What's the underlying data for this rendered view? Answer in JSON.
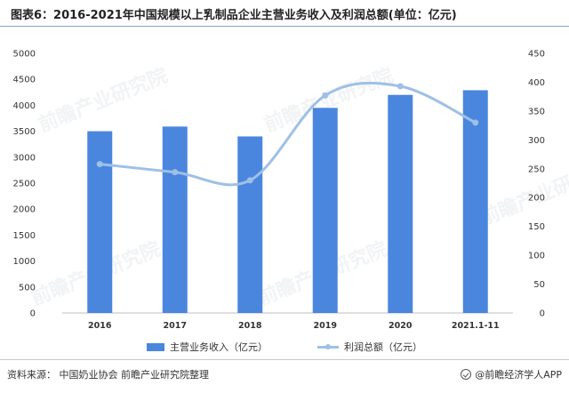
{
  "title": "图表6：2016-2021年中国规模以上乳制品企业主营业务收入及利润总额(单位：亿元)",
  "source": "资料来源：  中国奶业协会 前瞻产业研究院整理",
  "brand": "@前瞻经济学人APP",
  "watermark": "前瞻产业研究院",
  "colors": {
    "bar": "#4a86dd",
    "line": "#9ec0e6"
  },
  "legend": {
    "bar_label": "主营业务收入（亿元）",
    "line_label": "利润总额（亿元）"
  },
  "chart_data": {
    "type": "bar",
    "categories": [
      "2016",
      "2017",
      "2018",
      "2019",
      "2020",
      "2021.1-11"
    ],
    "series": [
      {
        "name": "主营业务收入（亿元）",
        "type": "bar",
        "axis": "left",
        "values": [
          3500,
          3590,
          3400,
          3950,
          4200,
          4290
        ]
      },
      {
        "name": "利润总额（亿元）",
        "type": "line",
        "axis": "right",
        "values": [
          258,
          244,
          230,
          377,
          393,
          330
        ]
      }
    ],
    "ylim": [
      0,
      5000
    ],
    "yticks": [
      0,
      500,
      1000,
      1500,
      2000,
      2500,
      3000,
      3500,
      4000,
      4500,
      5000
    ],
    "y2lim": [
      0,
      450
    ],
    "y2ticks": [
      0,
      50,
      100,
      150,
      200,
      250,
      300,
      350,
      400,
      450
    ],
    "grid": false,
    "legend_position": "bottom"
  }
}
